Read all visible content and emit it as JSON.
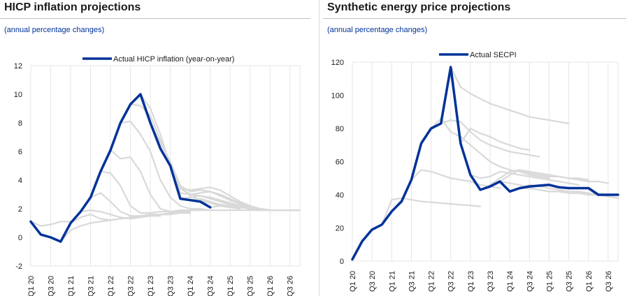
{
  "chart_data": [
    {
      "type": "line",
      "title": "HICP inflation projections",
      "subtitle": "(annual percentage changes)",
      "xlabel": "",
      "ylabel": "",
      "ylim": [
        -2,
        12
      ],
      "yticks": [
        -2,
        0,
        2,
        4,
        6,
        8,
        10,
        12
      ],
      "xticks": [
        "Q1 20",
        "Q3 20",
        "Q1 21",
        "Q3 21",
        "Q1 22",
        "Q3 22",
        "Q1 23",
        "Q3 23",
        "Q1 24",
        "Q3 24",
        "Q1 25",
        "Q3 25",
        "Q1 26",
        "Q3 26"
      ],
      "grid": "vertical",
      "legend": "top",
      "series": [
        {
          "name": "Actual HICP inflation (year-on-year)",
          "color": "#003299",
          "x": [
            "Q1 20",
            "Q2 20",
            "Q3 20",
            "Q4 20",
            "Q1 21",
            "Q2 21",
            "Q3 21",
            "Q4 21",
            "Q1 22",
            "Q2 22",
            "Q3 22",
            "Q4 22",
            "Q1 23",
            "Q2 23",
            "Q3 23",
            "Q4 23",
            "Q1 24",
            "Q2 24",
            "Q3 24"
          ],
          "values": [
            1.1,
            0.2,
            0.0,
            -0.3,
            1.0,
            1.8,
            2.8,
            4.6,
            6.1,
            8.0,
            9.3,
            10.0,
            8.0,
            6.2,
            5.0,
            2.7,
            2.6,
            2.5,
            2.1
          ]
        }
      ],
      "projection_color": "#d9d9d9",
      "projections": [
        {
          "start": "Q1 20",
          "values": [
            1.1,
            0.8,
            0.9,
            1.1,
            1.1
          ]
        },
        {
          "start": "Q4 20",
          "values": [
            -0.3,
            0.5,
            0.8,
            1.0,
            1.1,
            1.2,
            1.3,
            1.4,
            1.5,
            1.5,
            1.5
          ]
        },
        {
          "start": "Q1 21",
          "values": [
            1.0,
            1.4,
            1.6,
            1.3,
            1.2,
            1.3,
            1.4,
            1.5,
            1.5,
            1.6,
            1.6
          ]
        },
        {
          "start": "Q2 21",
          "values": [
            1.8,
            1.9,
            1.8,
            1.6,
            1.4,
            1.3,
            1.4,
            1.5,
            1.6,
            1.6,
            1.7,
            1.7
          ]
        },
        {
          "start": "Q3 21",
          "values": [
            2.8,
            3.1,
            2.5,
            1.8,
            1.5,
            1.5,
            1.6,
            1.6,
            1.7,
            1.8,
            1.8
          ]
        },
        {
          "start": "Q4 21",
          "values": [
            4.6,
            4.5,
            3.6,
            2.2,
            1.7,
            1.7,
            1.8,
            1.8,
            1.9,
            1.9
          ]
        },
        {
          "start": "Q1 22",
          "values": [
            6.1,
            5.5,
            5.6,
            4.6,
            3.0,
            2.0,
            1.8,
            1.8,
            1.9,
            1.9
          ]
        },
        {
          "start": "Q2 22",
          "values": [
            8.0,
            8.1,
            7.2,
            6.0,
            4.0,
            2.8,
            2.2,
            2.0,
            2.0,
            1.9
          ]
        },
        {
          "start": "Q3 22",
          "values": [
            9.3,
            9.2,
            8.5,
            6.8,
            5.2,
            3.6,
            2.9,
            2.6,
            2.4,
            2.2,
            2.1,
            2.0
          ]
        },
        {
          "start": "Q4 22",
          "values": [
            10.0,
            9.0,
            7.2,
            5.0,
            3.4,
            3.0,
            2.9,
            2.8,
            2.6,
            2.4,
            2.2,
            2.0,
            1.9
          ]
        },
        {
          "start": "Q1 23",
          "values": [
            8.0,
            6.6,
            5.3,
            3.6,
            3.2,
            3.3,
            3.2,
            2.9,
            2.6,
            2.3,
            2.1,
            2.0,
            1.9
          ]
        },
        {
          "start": "Q2 23",
          "values": [
            6.2,
            5.1,
            3.5,
            3.3,
            3.4,
            3.5,
            3.3,
            2.9,
            2.5,
            2.2,
            2.0,
            1.9
          ]
        },
        {
          "start": "Q3 23",
          "values": [
            5.0,
            3.1,
            3.0,
            3.1,
            3.2,
            3.0,
            2.7,
            2.4,
            2.2,
            2.0,
            1.9
          ]
        },
        {
          "start": "Q4 23",
          "values": [
            2.7,
            2.8,
            2.9,
            2.7,
            2.5,
            2.3,
            2.2,
            2.1,
            2.0,
            1.9,
            1.9,
            1.9,
            1.9
          ]
        },
        {
          "start": "Q1 24",
          "values": [
            2.6,
            2.7,
            2.5,
            2.3,
            2.2,
            2.2,
            2.1,
            2.0,
            1.9,
            1.9,
            1.9,
            1.9
          ]
        },
        {
          "start": "Q2 24",
          "values": [
            2.5,
            2.4,
            2.2,
            2.1,
            2.1,
            2.0,
            2.0,
            1.9,
            1.9,
            1.9,
            1.9
          ]
        },
        {
          "start": "Q3 24",
          "values": [
            2.1,
            2.2,
            2.2,
            2.1,
            2.0,
            2.0,
            1.9,
            1.9,
            1.9,
            1.9
          ]
        },
        {
          "start": "Q1 24",
          "values": [
            1.9,
            1.9,
            1.9,
            1.9,
            1.9,
            1.9,
            1.9,
            1.9,
            1.9,
            1.9,
            1.9,
            1.9
          ]
        }
      ]
    },
    {
      "type": "line",
      "title": "Synthetic energy price projections",
      "subtitle": "(annual percentage changes)",
      "xlabel": "",
      "ylabel": "",
      "ylim": [
        0,
        120
      ],
      "yticks": [
        0,
        20,
        40,
        60,
        80,
        100,
        120
      ],
      "xticks": [
        "Q1 20",
        "Q3 20",
        "Q1 21",
        "Q3 21",
        "Q1 22",
        "Q3 22",
        "Q1 23",
        "Q3 23",
        "Q1 24",
        "Q3 24",
        "Q1 25",
        "Q3 25",
        "Q1 26",
        "Q3 26"
      ],
      "grid": "vertical",
      "legend": "top",
      "series": [
        {
          "name": "Actual SECPI",
          "color": "#003299",
          "x": [
            "Q1 20",
            "Q2 20",
            "Q3 20",
            "Q4 20",
            "Q1 21",
            "Q2 21",
            "Q3 21",
            "Q4 21",
            "Q1 22",
            "Q2 22",
            "Q3 22",
            "Q4 22",
            "Q1 23",
            "Q2 23",
            "Q3 23",
            "Q4 23",
            "Q1 24",
            "Q2 24",
            "Q3 24",
            "Q4 24",
            "Q1 25",
            "Q2 25",
            "Q3 25",
            "Q4 25",
            "Q1 26",
            "Q2 26",
            "Q3 26",
            "Q4 26"
          ],
          "values": [
            1,
            12,
            19,
            22,
            30,
            36,
            49,
            71,
            80,
            83,
            117,
            71,
            52,
            43,
            45,
            48,
            42,
            44,
            45,
            45.5,
            46,
            44.5,
            44,
            44,
            44,
            40,
            40,
            40
          ]
        }
      ],
      "projection_color": "#d9d9d9",
      "projections": [
        {
          "start": "Q4 20",
          "values": [
            22,
            37,
            38,
            37,
            36,
            35.5,
            35,
            34.5,
            34,
            33.5,
            33
          ]
        },
        {
          "start": "Q3 21",
          "values": [
            49,
            55,
            54,
            52,
            50,
            49,
            48,
            46,
            45,
            44
          ]
        },
        {
          "start": "Q1 22",
          "values": [
            80,
            86,
            78,
            75,
            70,
            65,
            60,
            57,
            55,
            54,
            52,
            51,
            50
          ]
        },
        {
          "start": "Q2 22",
          "values": [
            83,
            85,
            84,
            78,
            73,
            70,
            68,
            66,
            65,
            64,
            63
          ]
        },
        {
          "start": "Q3 22",
          "values": [
            117,
            105,
            101,
            98,
            95,
            93,
            91,
            89,
            87,
            86,
            85,
            84,
            83
          ]
        },
        {
          "start": "Q4 22",
          "values": [
            71,
            80,
            77,
            75,
            72,
            70,
            68,
            67
          ]
        },
        {
          "start": "Q1 23",
          "values": [
            52,
            50,
            51,
            54,
            53,
            52,
            51,
            50,
            49,
            48,
            47,
            46
          ]
        },
        {
          "start": "Q2 23",
          "values": [
            43,
            46,
            50,
            54,
            55,
            53,
            52,
            51,
            51,
            50,
            50,
            49
          ]
        },
        {
          "start": "Q3 23",
          "values": [
            45,
            48,
            52,
            55,
            54,
            53,
            52,
            51,
            50,
            49,
            48,
            48,
            47
          ]
        },
        {
          "start": "Q4 23",
          "values": [
            48,
            47,
            46,
            44,
            43,
            42,
            42,
            41,
            41,
            40,
            40,
            40
          ]
        },
        {
          "start": "Q1 24",
          "values": [
            42,
            44,
            44,
            43,
            42,
            42,
            41,
            41,
            40,
            40,
            39,
            38
          ]
        },
        {
          "start": "Q2 24",
          "values": [
            44,
            46,
            45,
            44,
            43,
            42,
            42,
            41,
            40,
            39,
            38
          ]
        }
      ]
    }
  ]
}
